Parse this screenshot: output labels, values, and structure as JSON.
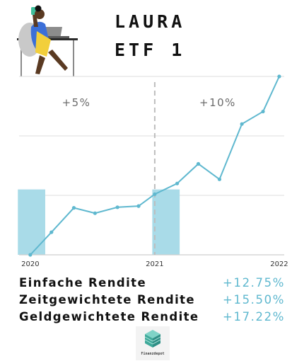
{
  "header": {
    "title_line1": "LAURA",
    "title_line2": "ETF 1"
  },
  "chart_data": {
    "type": "line",
    "x": [
      2020.0,
      2020.17,
      2020.35,
      2020.52,
      2020.7,
      2020.87,
      2021.0,
      2021.18,
      2021.35,
      2021.52,
      2021.7,
      2021.87,
      2022.0
    ],
    "y": [
      0.0,
      3.8,
      7.9,
      7.0,
      8.0,
      8.2,
      10.2,
      12.0,
      15.3,
      12.7,
      22.0,
      24.1,
      30.0
    ],
    "xticks": [
      "2020",
      "2021",
      "2022"
    ],
    "xlim": [
      2020,
      2022
    ],
    "ylim": [
      0,
      30
    ],
    "grid": "horizontal",
    "annotations": [
      "+5%",
      "+10%"
    ],
    "divider_x": 2021,
    "highlight_bands": [
      [
        2019.9,
        2020.12
      ],
      [
        2020.98,
        2021.2
      ]
    ],
    "colors": {
      "line": "#5fb8cf",
      "band": "#a9dbe8",
      "grid": "#dddddd",
      "divider": "#bdbdbd",
      "axis": "#cfcfcf"
    }
  },
  "metrics": [
    {
      "label": "Einfache Rendite",
      "value": "+12.75%"
    },
    {
      "label": "Zeitgewichtete Rendite",
      "value": "+15.50%"
    },
    {
      "label": "Geldgewichtete Rendite",
      "value": "+17.22%"
    }
  ],
  "logo": {
    "text": "Finanzdepot",
    "icon": "cube-icon"
  }
}
